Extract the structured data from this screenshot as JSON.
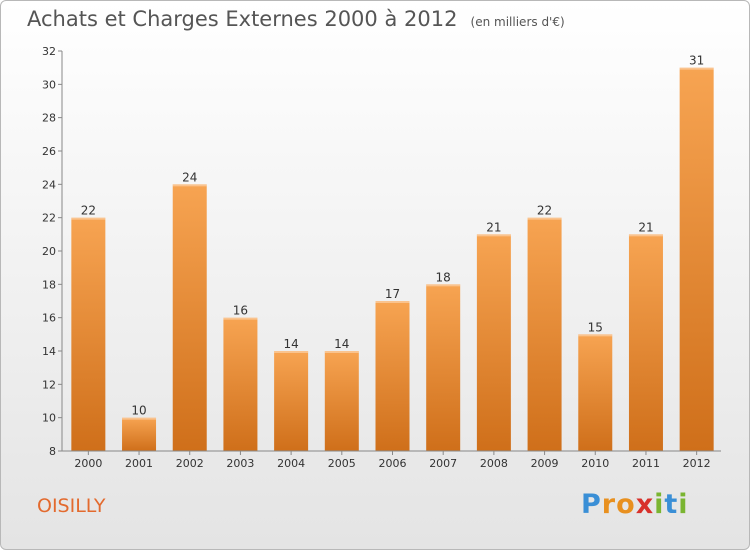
{
  "header": {
    "title": "Achats et Charges Externes 2000 à 2012",
    "subtitle": "(en milliers d'€)"
  },
  "footer": {
    "city": "OISILLY",
    "logo_letters": [
      "P",
      "r",
      "o",
      "x",
      "i",
      "t",
      "i"
    ],
    "logo_colors": [
      "#3a8fd6",
      "#e8901f",
      "#e8901f",
      "#d8312b",
      "#7ab531",
      "#3a8fd6",
      "#7ab531"
    ]
  },
  "colors": {
    "bar_top": "#f7a452",
    "bar_bottom": "#cf6f1a",
    "axis": "#888888",
    "label": "#333333"
  },
  "chart_data": {
    "type": "bar",
    "categories": [
      "2000",
      "2001",
      "2002",
      "2003",
      "2004",
      "2005",
      "2006",
      "2007",
      "2008",
      "2009",
      "2010",
      "2011",
      "2012"
    ],
    "values": [
      22,
      10,
      24,
      16,
      14,
      14,
      17,
      18,
      21,
      22,
      15,
      21,
      31
    ],
    "yticks": [
      8,
      10,
      12,
      14,
      16,
      18,
      20,
      22,
      24,
      26,
      28,
      30,
      32
    ],
    "ylim": [
      8,
      32
    ],
    "title": "Achats et Charges Externes 2000 à 2012",
    "xlabel": "",
    "ylabel": "",
    "grid": false
  }
}
